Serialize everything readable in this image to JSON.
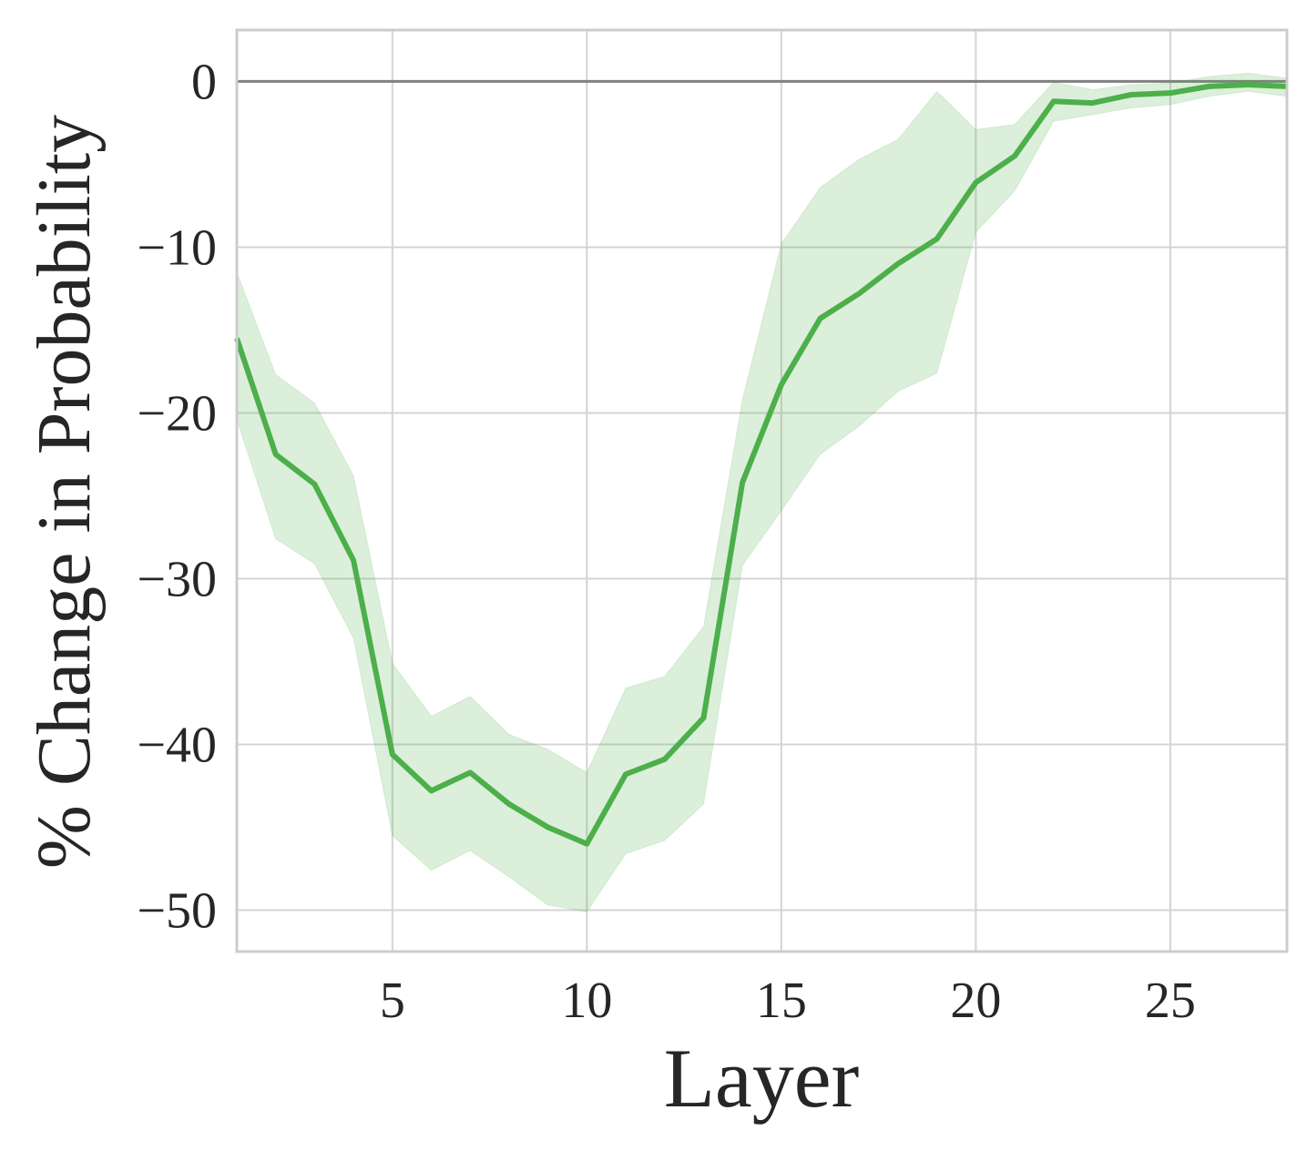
{
  "chart_data": {
    "type": "line",
    "x_label": "Layer",
    "y_label": "% Change in Probability",
    "x": [
      1,
      2,
      3,
      4,
      5,
      6,
      7,
      8,
      9,
      10,
      11,
      12,
      13,
      14,
      15,
      16,
      17,
      18,
      19,
      20,
      21,
      22,
      23,
      24,
      25,
      26,
      27,
      28
    ],
    "series": [
      {
        "color": "#4daf4a",
        "values": [
          -15.5,
          -22.5,
          -24.3,
          -28.9,
          -40.6,
          -42.8,
          -41.7,
          -43.6,
          -45.0,
          -46.0,
          -41.8,
          -40.9,
          -38.4,
          -24.2,
          -18.3,
          -14.3,
          -12.8,
          -11.0,
          -9.5,
          -6.1,
          -4.5,
          -1.2,
          -1.3,
          -0.8,
          -0.7,
          -0.3,
          -0.2,
          -0.3
        ],
        "upper": [
          -11.5,
          -17.7,
          -19.4,
          -23.8,
          -35.1,
          -38.3,
          -37.1,
          -39.4,
          -40.3,
          -41.7,
          -36.6,
          -35.9,
          -32.9,
          -19.2,
          -9.8,
          -6.4,
          -4.7,
          -3.5,
          -0.6,
          -2.9,
          -2.6,
          -0.05,
          -0.5,
          -0.2,
          -0.1,
          0.3,
          0.5,
          0.2
        ],
        "lower": [
          -20.4,
          -27.6,
          -29.1,
          -33.6,
          -45.5,
          -47.6,
          -46.4,
          -48.0,
          -49.7,
          -50.1,
          -46.6,
          -45.8,
          -43.6,
          -29.2,
          -25.9,
          -22.5,
          -20.8,
          -18.7,
          -17.6,
          -9.1,
          -6.6,
          -2.4,
          -2.0,
          -1.6,
          -1.4,
          -0.9,
          -0.6,
          -0.9
        ]
      }
    ],
    "hline": 0,
    "hline_color": "#808080",
    "xlim": [
      1,
      28
    ],
    "xticks": [
      5,
      10,
      15,
      20,
      25
    ],
    "ylim": [
      -52.5,
      3.1
    ],
    "yticks": [
      {
        "value": -50,
        "label": "−50"
      },
      {
        "value": -40,
        "label": "−40"
      },
      {
        "value": -30,
        "label": "−30"
      },
      {
        "value": -20,
        "label": "−20"
      },
      {
        "value": -10,
        "label": "−10"
      },
      0
    ],
    "grid": true
  }
}
